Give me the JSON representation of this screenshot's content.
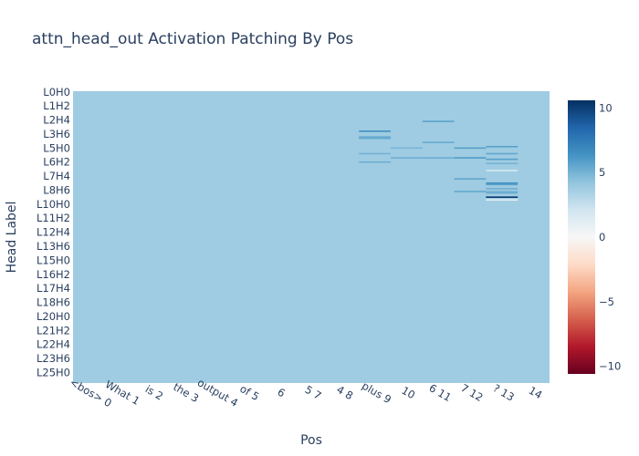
{
  "chart_data": {
    "type": "heatmap",
    "title": "attn_head_out Activation Patching By Pos",
    "xlabel": "Pos",
    "ylabel": "Head Label",
    "x_categories": [
      "<bos> 0",
      "What 1",
      "is 2",
      "the 3",
      "output 4",
      "of 5",
      "6",
      "5 7",
      "4 8",
      "plus 9",
      "10",
      "6 11",
      "7 12",
      "? 13",
      "14"
    ],
    "y_tick_labels": [
      "L0H0",
      "L1H2",
      "L2H4",
      "L3H6",
      "L5H0",
      "L6H2",
      "L7H4",
      "L8H6",
      "L10H0",
      "L11H2",
      "L12H4",
      "L13H6",
      "L15H0",
      "L16H2",
      "L17H4",
      "L18H6",
      "L20H0",
      "L21H2",
      "L22H4",
      "L23H6",
      "L25H0"
    ],
    "row_count": 208,
    "baseline_value": 3.8,
    "colorbar": {
      "min": -10.6,
      "max": 10.6,
      "ticks": [
        10,
        5,
        0,
        -5,
        -10
      ],
      "tick_labels": [
        "10",
        "5",
        "0",
        "−5",
        "−10"
      ],
      "colorscale": "RdBu"
    },
    "highlights": [
      {
        "col": 9,
        "row": 28,
        "value": 6.5
      },
      {
        "col": 9,
        "row": 32,
        "value": 5.3
      },
      {
        "col": 9,
        "row": 33,
        "value": 5.6
      },
      {
        "col": 9,
        "row": 44,
        "value": 5.0
      },
      {
        "col": 9,
        "row": 50,
        "value": 5.2
      },
      {
        "col": 10,
        "row": 40,
        "value": 4.9
      },
      {
        "col": 10,
        "row": 47,
        "value": 5.2
      },
      {
        "col": 11,
        "row": 21,
        "value": 5.7
      },
      {
        "col": 11,
        "row": 36,
        "value": 5.4
      },
      {
        "col": 11,
        "row": 47,
        "value": 5.3
      },
      {
        "col": 12,
        "row": 40,
        "value": 5.8
      },
      {
        "col": 12,
        "row": 47,
        "value": 6.0
      },
      {
        "col": 12,
        "row": 62,
        "value": 5.6
      },
      {
        "col": 12,
        "row": 71,
        "value": 5.5
      },
      {
        "col": 13,
        "row": 39,
        "value": 5.8
      },
      {
        "col": 13,
        "row": 44,
        "value": 5.5
      },
      {
        "col": 13,
        "row": 48,
        "value": 5.8
      },
      {
        "col": 13,
        "row": 51,
        "value": 5.0
      },
      {
        "col": 13,
        "row": 56,
        "value": 1.8
      },
      {
        "col": 13,
        "row": 65,
        "value": 6.5
      },
      {
        "col": 13,
        "row": 66,
        "value": 5.8
      },
      {
        "col": 13,
        "row": 69,
        "value": 5.2
      },
      {
        "col": 13,
        "row": 71,
        "value": 5.0
      },
      {
        "col": 13,
        "row": 72,
        "value": 5.4
      },
      {
        "col": 13,
        "row": 75,
        "value": 10.3
      },
      {
        "col": 13,
        "row": 77,
        "value": 1.2
      }
    ]
  }
}
